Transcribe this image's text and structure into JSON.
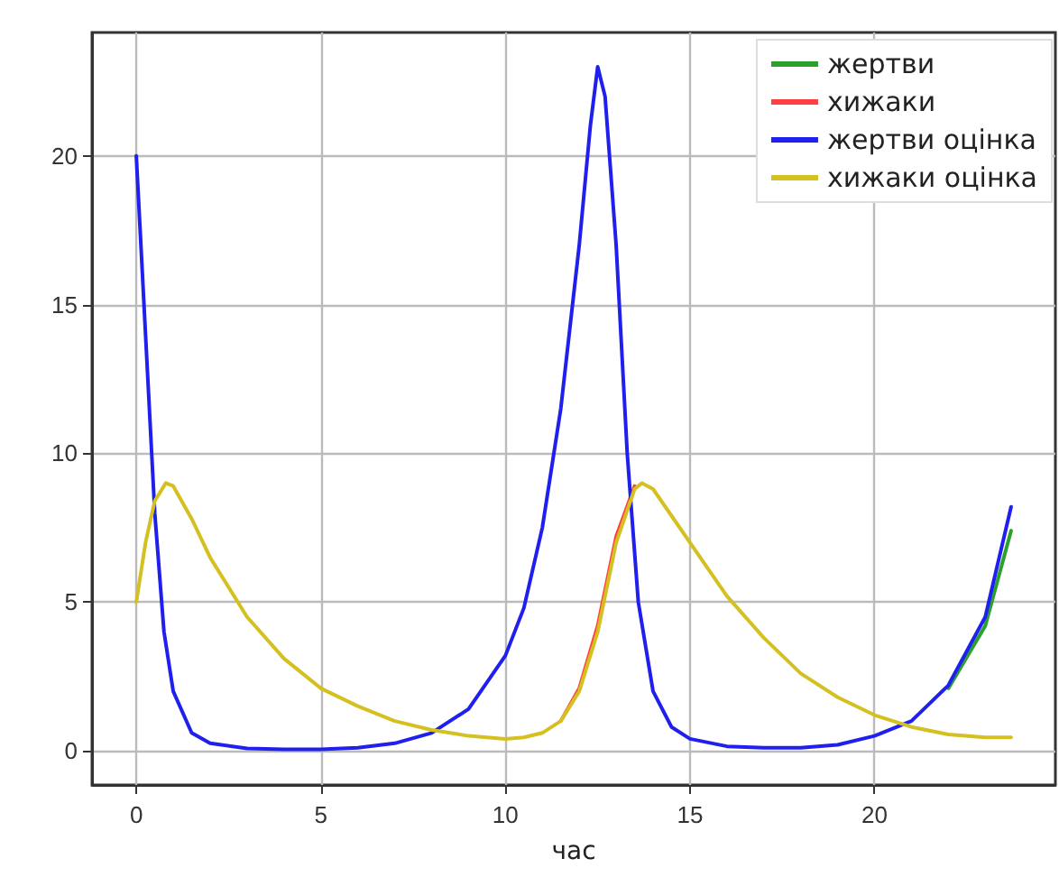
{
  "chart_data": {
    "type": "line",
    "xlabel": "час",
    "xlim": [
      -1.2,
      24.9
    ],
    "ylim": [
      -1.15,
      24.15
    ],
    "xticks": [
      0,
      5,
      10,
      15,
      20
    ],
    "yticks": [
      0,
      5,
      10,
      15,
      20
    ],
    "grid": true,
    "legend": "top right",
    "series": [
      {
        "name": "жертви",
        "color": "#2ca02c",
        "x": [
          22,
          23,
          23.7
        ],
        "values": [
          2.1,
          4.2,
          7.4
        ]
      },
      {
        "name": "хижаки",
        "color": "#ff4040",
        "x": [
          11.5,
          12,
          12.5,
          13,
          13.5
        ],
        "values": [
          1,
          2.1,
          4.2,
          7.2,
          8.9
        ]
      },
      {
        "name": "жертви оцінка",
        "color": "#2020ee",
        "x": [
          0,
          0.25,
          0.5,
          0.75,
          1,
          1.5,
          2,
          3,
          4,
          5,
          6,
          7,
          8,
          9,
          10,
          10.5,
          11,
          11.5,
          12,
          12.3,
          12.5,
          12.7,
          13,
          13.3,
          13.6,
          14,
          14.5,
          15,
          16,
          17,
          18,
          19,
          20,
          21,
          22,
          23,
          23.7
        ],
        "values": [
          20,
          14,
          8,
          4,
          2,
          0.6,
          0.25,
          0.08,
          0.05,
          0.05,
          0.1,
          0.25,
          0.6,
          1.4,
          3.2,
          4.8,
          7.5,
          11.5,
          17,
          21,
          23,
          22,
          17,
          10,
          5,
          2,
          0.8,
          0.4,
          0.15,
          0.1,
          0.1,
          0.2,
          0.5,
          1,
          2.2,
          4.5,
          8.2
        ]
      },
      {
        "name": "хижаки оцінка",
        "color": "#d4c020",
        "x": [
          0,
          0.25,
          0.5,
          0.8,
          1,
          1.5,
          2,
          3,
          4,
          5,
          6,
          7,
          8,
          9,
          10,
          10.5,
          11,
          11.5,
          12,
          12.5,
          13,
          13.5,
          13.7,
          14,
          15,
          16,
          17,
          18,
          19,
          20,
          21,
          22,
          23,
          23.7
        ],
        "values": [
          5,
          7,
          8.4,
          9,
          8.9,
          7.8,
          6.5,
          4.5,
          3.1,
          2.1,
          1.5,
          1,
          0.7,
          0.5,
          0.4,
          0.45,
          0.6,
          1,
          2,
          4,
          7,
          8.8,
          9,
          8.8,
          7,
          5.2,
          3.8,
          2.6,
          1.8,
          1.2,
          0.8,
          0.55,
          0.45,
          0.45
        ]
      }
    ]
  }
}
